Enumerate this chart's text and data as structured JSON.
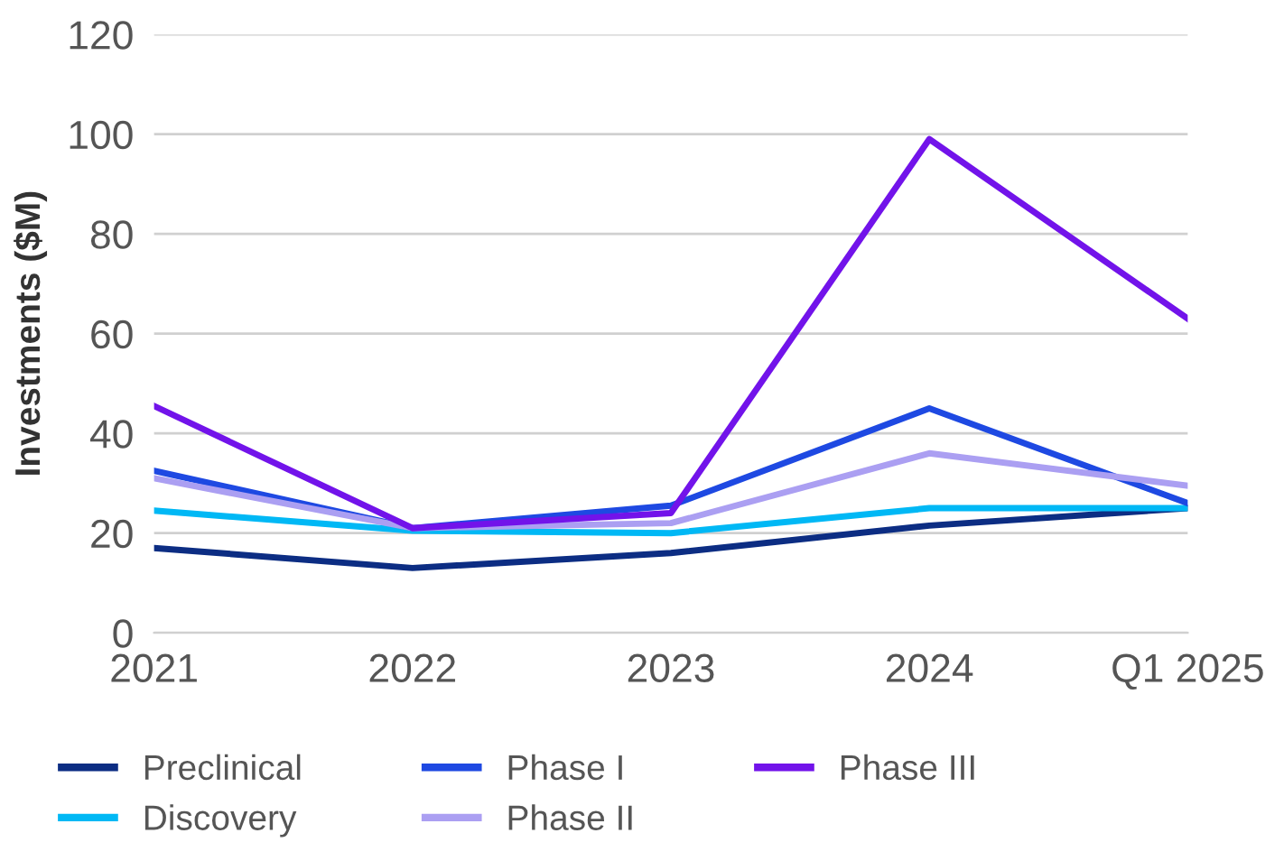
{
  "chart_data": {
    "type": "line",
    "ylabel": "Investments ($M)",
    "categories": [
      "2021",
      "2022",
      "2023",
      "2024",
      "Q1 2025"
    ],
    "series": [
      {
        "name": "Preclinical",
        "color": "#0c2d83",
        "values": [
          17,
          13,
          16,
          21.5,
          25
        ]
      },
      {
        "name": "Discovery",
        "color": "#00b8f5",
        "values": [
          24.5,
          20.5,
          20,
          25,
          25
        ]
      },
      {
        "name": "Phase I",
        "color": "#1e49e2",
        "values": [
          32.5,
          21,
          25.5,
          45,
          26
        ]
      },
      {
        "name": "Phase II",
        "color": "#ab9ff2",
        "values": [
          31,
          21,
          22,
          36,
          29.5
        ]
      },
      {
        "name": "Phase III",
        "color": "#7213ea",
        "values": [
          45.5,
          21,
          24,
          99,
          63
        ]
      }
    ],
    "ylim": [
      0,
      120
    ],
    "yticks": [
      0,
      20,
      40,
      60,
      80,
      100,
      120
    ],
    "grid": "y",
    "legend": "bottom",
    "marker": "none",
    "line_style": "solid"
  }
}
